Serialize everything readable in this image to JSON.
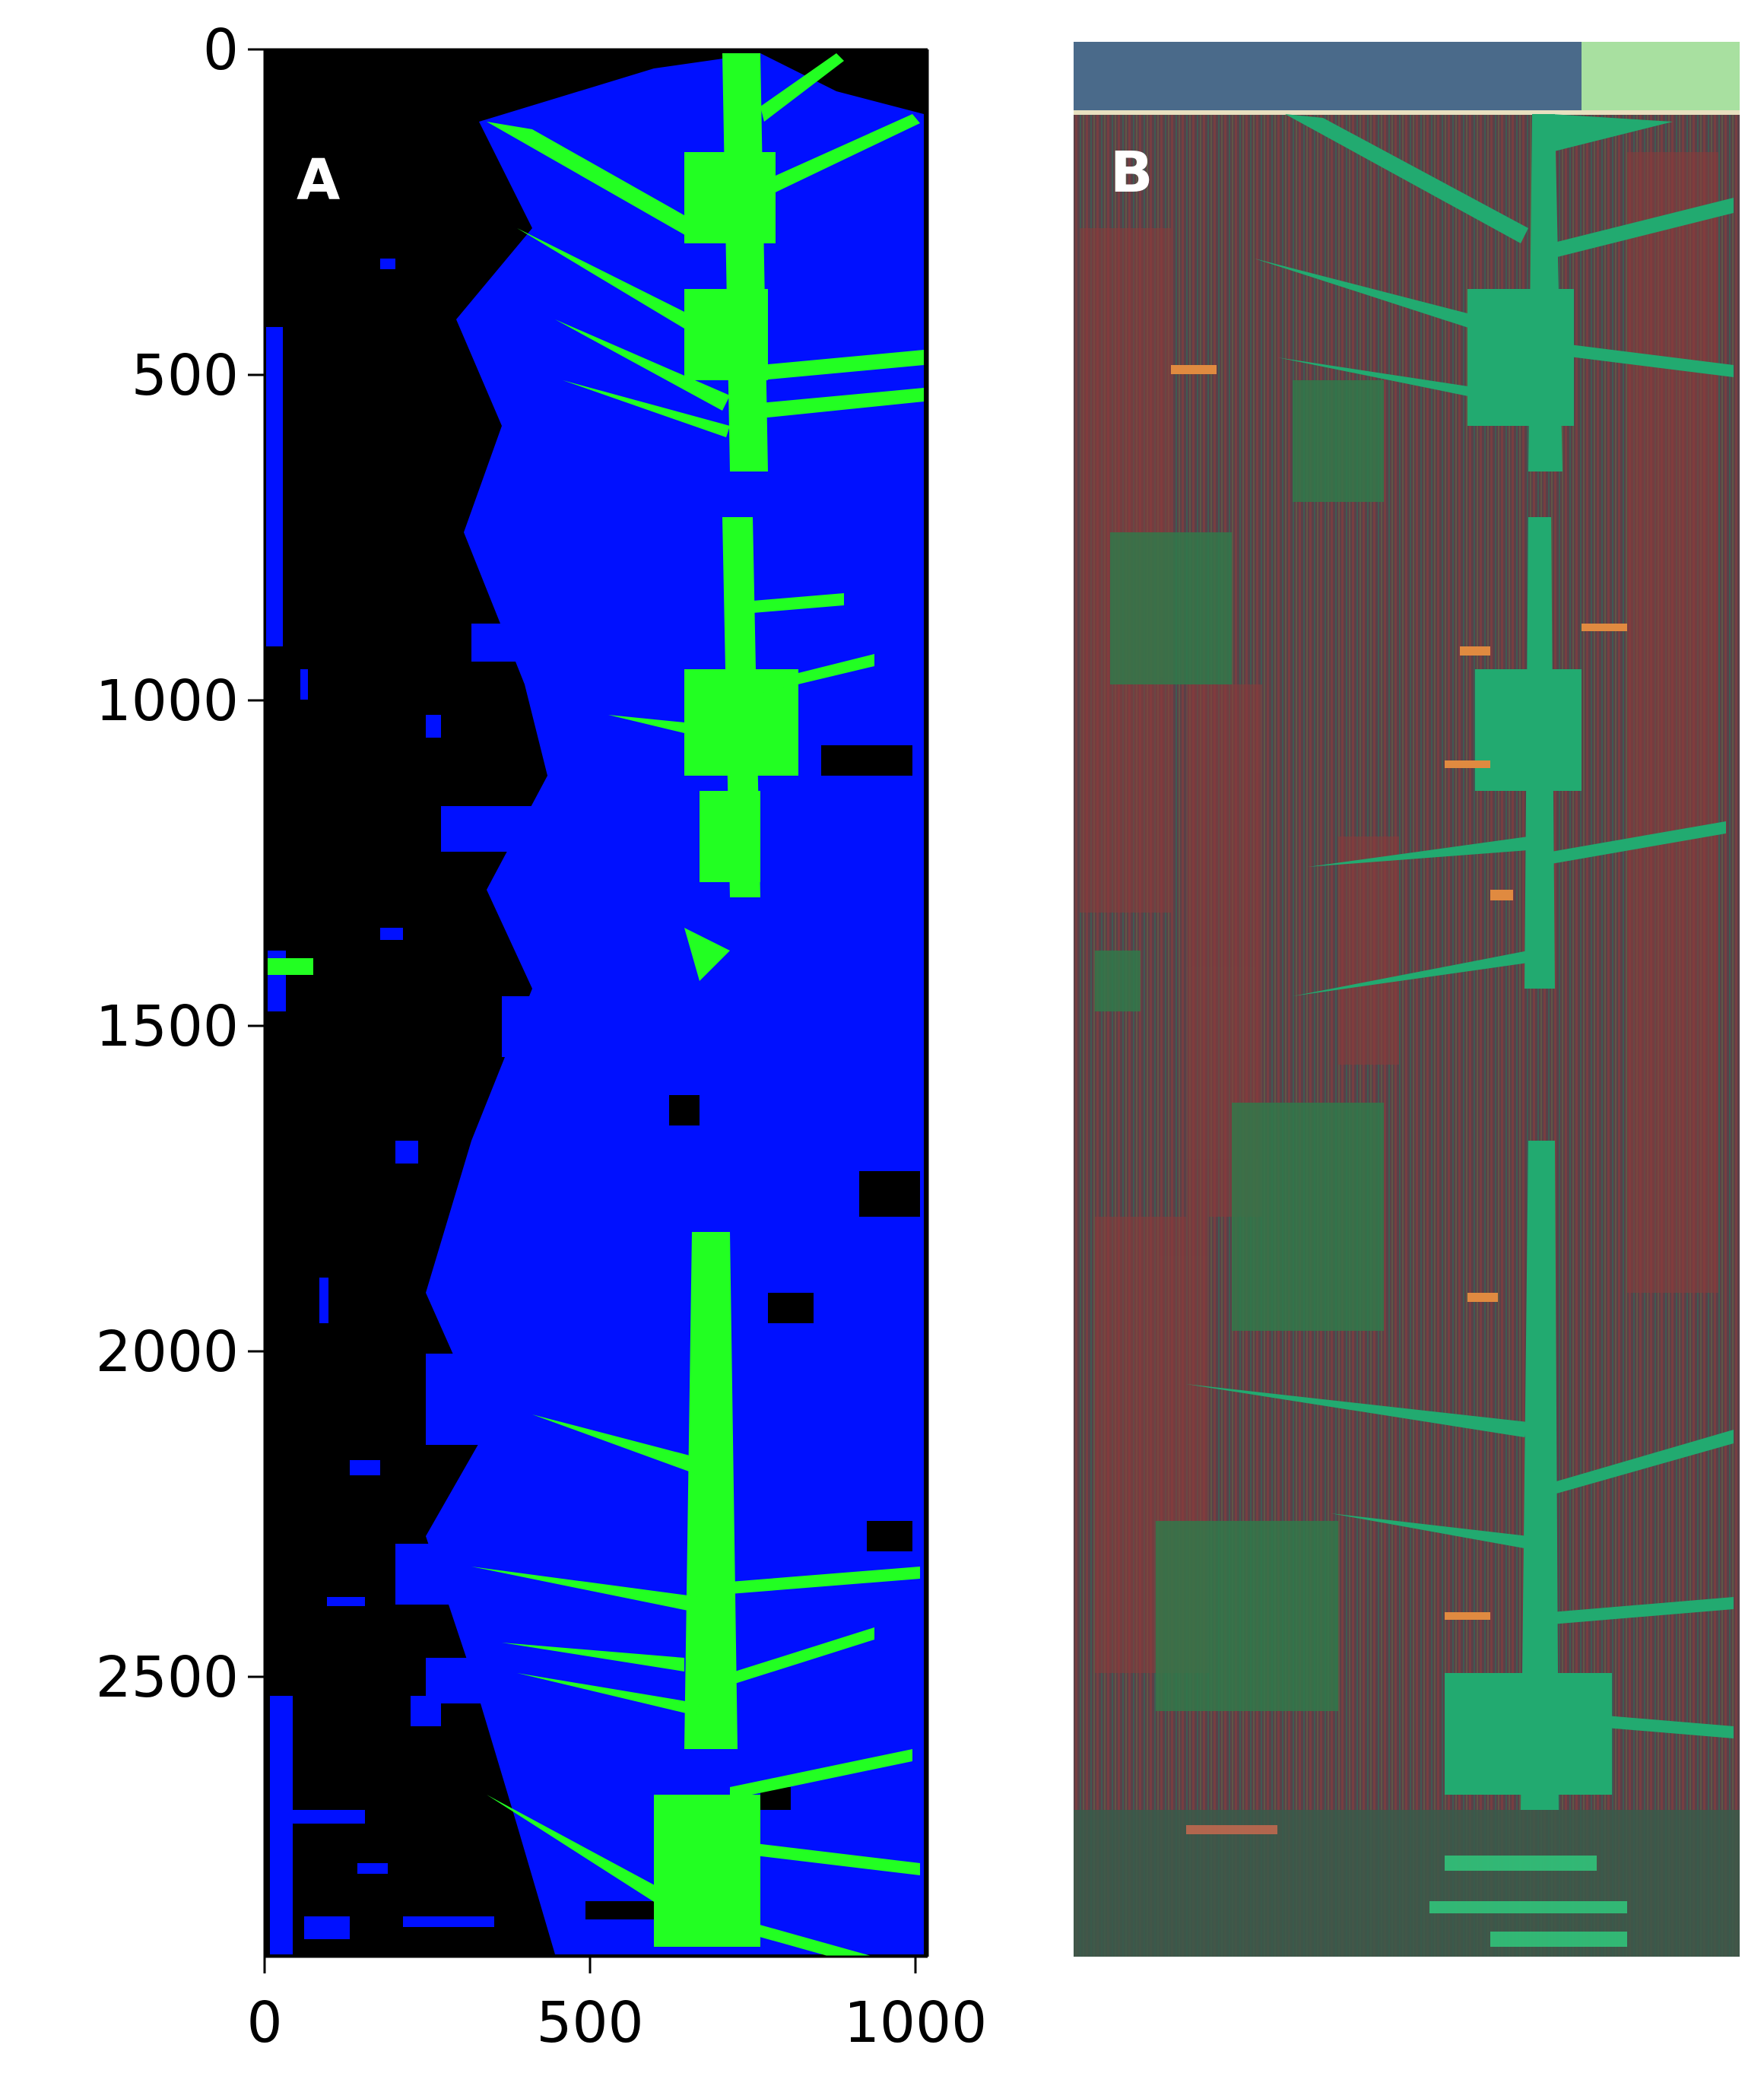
{
  "panels": {
    "a": {
      "letter": "A",
      "y_ticks": [
        "0",
        "500",
        "1000",
        "1500",
        "2000",
        "2500"
      ],
      "x_ticks": [
        "0",
        "500",
        "1000"
      ],
      "colors": {
        "background": "#000000",
        "class_1": "#0010ff",
        "class_2": "#22ff22"
      }
    },
    "b": {
      "letter": "B",
      "colors": {
        "soil": "#7a3a3a",
        "plant": "#22aa66",
        "band": "#2a6a5a"
      }
    }
  }
}
